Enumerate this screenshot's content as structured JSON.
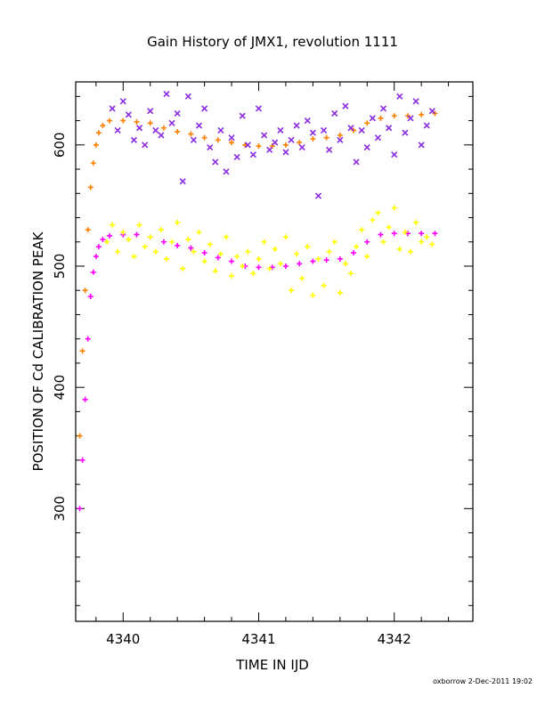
{
  "chart_data": {
    "type": "scatter",
    "title": "Gain History of JMX1, revolution 1111",
    "xlabel": "TIME IN IJD",
    "ylabel": "POSITION OF Cd CALIBRATION PEAK",
    "xlim": [
      4339.65,
      4342.58
    ],
    "ylim": [
      207,
      652
    ],
    "x_ticks": [
      4340,
      4341,
      4342
    ],
    "x_tick_labels": [
      "4340",
      "4341",
      "4342"
    ],
    "y_ticks": [
      300,
      400,
      500,
      600
    ],
    "y_tick_labels": [
      "300",
      "400",
      "500",
      "600"
    ],
    "grid": false,
    "footer": "oxborrow  2-Dec-2011 19:02",
    "colors": {
      "high_fit": "#ff7f00",
      "high_points": "#8a2be2",
      "low_fit": "#ff00ff",
      "low_points": "#ffff00"
    },
    "series": [
      {
        "style": "plus",
        "color": "#ff7f00",
        "x": [
          4339.68,
          4339.7,
          4339.72,
          4339.74,
          4339.76,
          4339.78,
          4339.8,
          4339.82,
          4339.85,
          4339.9,
          4340.0,
          4340.1,
          4340.2,
          4340.3,
          4340.4,
          4340.5,
          4340.6,
          4340.7,
          4340.8,
          4340.9,
          4341.0,
          4341.1,
          4341.2,
          4341.3,
          4341.4,
          4341.5,
          4341.6,
          4341.7,
          4341.8,
          4341.9,
          4342.0,
          4342.1,
          4342.2,
          4342.3
        ],
        "y": [
          360,
          430,
          480,
          530,
          565,
          585,
          600,
          610,
          616,
          620,
          620,
          619,
          618,
          614,
          611,
          609,
          606,
          604,
          602,
          600,
          599,
          599,
          600,
          602,
          605,
          606,
          608,
          612,
          618,
          622,
          624,
          624,
          625,
          626
        ]
      },
      {
        "style": "x",
        "color": "#8a2be2",
        "x": [
          4339.92,
          4339.96,
          4340.0,
          4340.04,
          4340.08,
          4340.12,
          4340.16,
          4340.2,
          4340.24,
          4340.28,
          4340.32,
          4340.36,
          4340.4,
          4340.44,
          4340.48,
          4340.52,
          4340.56,
          4340.6,
          4340.64,
          4340.68,
          4340.72,
          4340.76,
          4340.8,
          4340.84,
          4340.88,
          4340.92,
          4340.96,
          4341.0,
          4341.04,
          4341.08,
          4341.12,
          4341.16,
          4341.2,
          4341.24,
          4341.28,
          4341.32,
          4341.36,
          4341.4,
          4341.44,
          4341.48,
          4341.52,
          4341.56,
          4341.6,
          4341.64,
          4341.68,
          4341.72,
          4341.76,
          4341.8,
          4341.84,
          4341.88,
          4341.92,
          4341.96,
          4342.0,
          4342.04,
          4342.08,
          4342.12,
          4342.16,
          4342.2,
          4342.24,
          4342.28
        ],
        "y": [
          630,
          612,
          636,
          625,
          604,
          614,
          600,
          628,
          612,
          608,
          642,
          618,
          626,
          570,
          640,
          604,
          616,
          630,
          598,
          586,
          612,
          578,
          606,
          590,
          624,
          600,
          592,
          630,
          608,
          596,
          602,
          612,
          594,
          604,
          616,
          598,
          620,
          610,
          558,
          612,
          596,
          626,
          604,
          632,
          614,
          586,
          612,
          598,
          622,
          606,
          630,
          614,
          592,
          640,
          610,
          622,
          636,
          600,
          616,
          628
        ]
      },
      {
        "style": "plus",
        "color": "#ff00ff",
        "x": [
          4339.68,
          4339.7,
          4339.72,
          4339.74,
          4339.76,
          4339.78,
          4339.8,
          4339.82,
          4339.85,
          4339.9,
          4340.0,
          4340.1,
          4340.2,
          4340.3,
          4340.4,
          4340.5,
          4340.6,
          4340.7,
          4340.8,
          4340.9,
          4341.0,
          4341.1,
          4341.2,
          4341.3,
          4341.4,
          4341.5,
          4341.6,
          4341.7,
          4341.8,
          4341.9,
          4342.0,
          4342.1,
          4342.2,
          4342.3
        ],
        "y": [
          300,
          340,
          390,
          440,
          475,
          495,
          508,
          516,
          522,
          525,
          526,
          526,
          524,
          520,
          517,
          515,
          511,
          507,
          504,
          500,
          499,
          499,
          500,
          502,
          504,
          505,
          506,
          511,
          520,
          526,
          527,
          527,
          527,
          527
        ]
      },
      {
        "style": "plus",
        "color": "#ffff00",
        "x": [
          4339.88,
          4339.92,
          4339.96,
          4340.0,
          4340.04,
          4340.08,
          4340.12,
          4340.16,
          4340.2,
          4340.24,
          4340.28,
          4340.32,
          4340.36,
          4340.4,
          4340.44,
          4340.48,
          4340.52,
          4340.56,
          4340.6,
          4340.64,
          4340.68,
          4340.72,
          4340.76,
          4340.8,
          4340.84,
          4340.88,
          4340.92,
          4340.96,
          4341.0,
          4341.04,
          4341.08,
          4341.12,
          4341.16,
          4341.2,
          4341.24,
          4341.28,
          4341.32,
          4341.36,
          4341.4,
          4341.44,
          4341.48,
          4341.52,
          4341.56,
          4341.6,
          4341.64,
          4341.68,
          4341.72,
          4341.76,
          4341.8,
          4341.84,
          4341.88,
          4341.92,
          4341.96,
          4342.0,
          4342.04,
          4342.08,
          4342.12,
          4342.16,
          4342.2,
          4342.24,
          4342.28
        ],
        "y": [
          520,
          534,
          512,
          528,
          522,
          508,
          534,
          516,
          524,
          512,
          530,
          506,
          520,
          536,
          498,
          522,
          512,
          528,
          504,
          518,
          496,
          510,
          524,
          492,
          508,
          500,
          512,
          494,
          506,
          520,
          498,
          514,
          502,
          524,
          480,
          510,
          490,
          516,
          476,
          506,
          484,
          512,
          520,
          478,
          502,
          494,
          516,
          530,
          508,
          538,
          544,
          520,
          532,
          548,
          514,
          528,
          512,
          536,
          520,
          524,
          518
        ]
      }
    ]
  }
}
